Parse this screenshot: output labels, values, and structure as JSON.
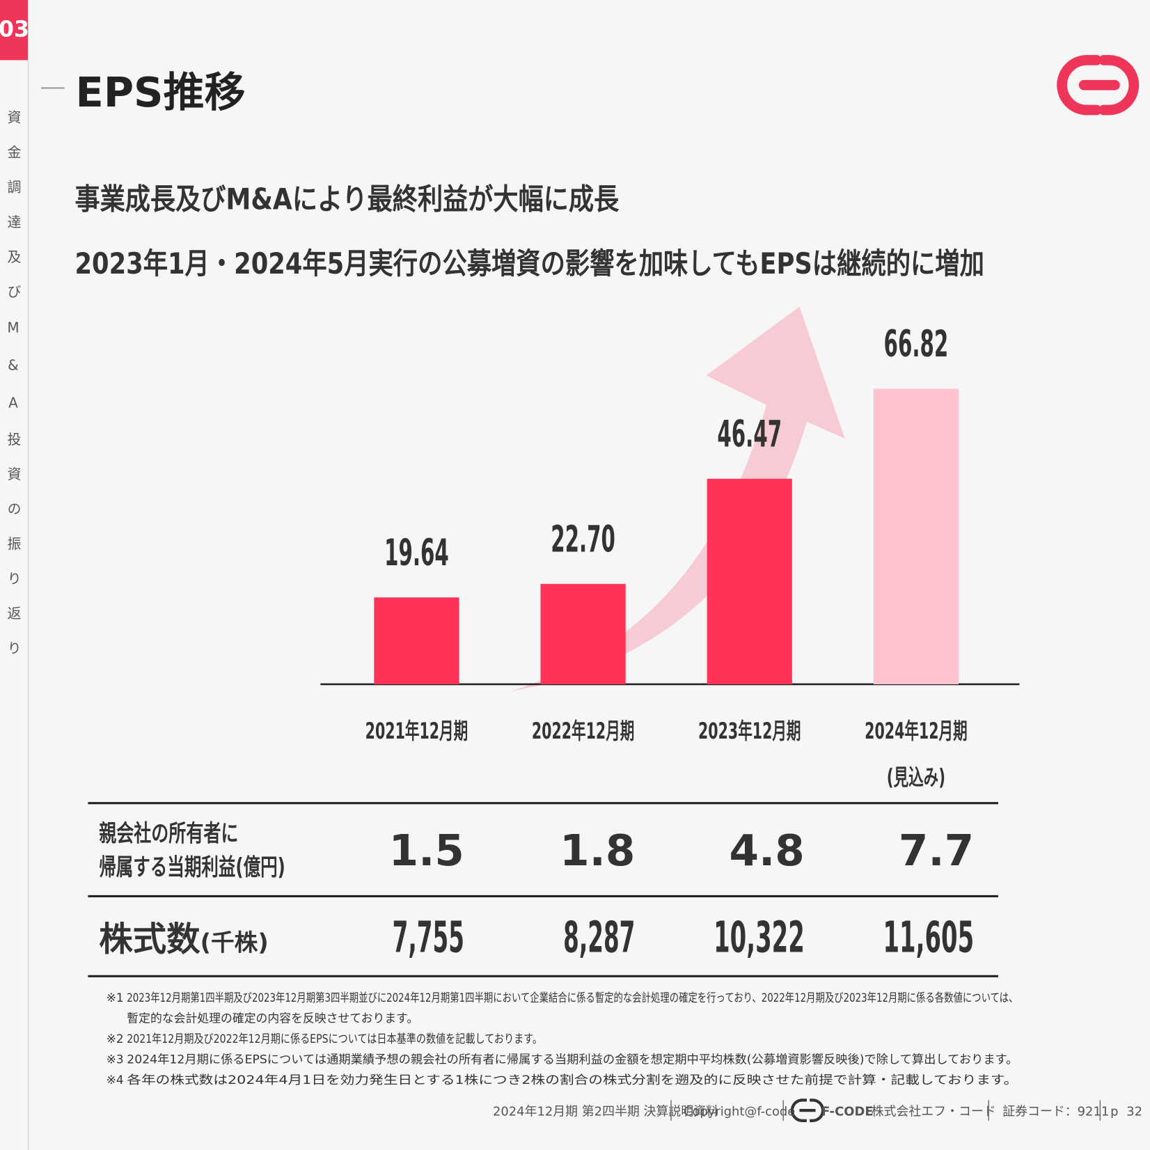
{
  "section_number": "03",
  "sidebar": "資金調達及びM&A投資の振り返り",
  "title": "EPS推移",
  "headline": [
    "事業成長及びM&Aにより最終利益が大幅に成長",
    "2023年1月・2024年5月実行の公募増資の影響を加味してもEPSは継続的に増加"
  ],
  "chart_data": {
    "type": "bar",
    "categories": [
      "2021年12月期",
      "2022年12月期",
      "2023年12月期",
      "2024年12月期"
    ],
    "forecast_label": "(見込み)",
    "values": [
      19.64,
      22.7,
      46.47,
      66.82
    ],
    "value_labels": [
      "19.64",
      "22.70",
      "46.47",
      "66.82"
    ],
    "colors": [
      "#ff3358",
      "#ff3358",
      "#ff3358",
      "#ffc3cf"
    ]
  },
  "table": {
    "rows": [
      {
        "label": [
          "親会社の所有者に",
          "帰属する当期利益(億円)"
        ],
        "cells": [
          "1.5",
          "1.8",
          "4.8",
          "7.7"
        ]
      },
      {
        "label": [
          "株式数",
          "(千株)"
        ],
        "cells": [
          "7,755",
          "8,287",
          "10,322",
          "11,605"
        ]
      }
    ]
  },
  "notes": [
    {
      "mark": "※1",
      "lines": [
        "2023年12月期第1四半期及び2023年12月期第3四半期並びに2024年12月期第1四半期において企業結合に係る暫定的な会計処理の確定を行っており、2022年12月期及び2023年12月期に係る各数値については、",
        "暫定的な会計処理の確定の内容を反映させております。"
      ]
    },
    {
      "mark": "※2",
      "lines": [
        "2021年12月期及び2022年12月期に係るEPSについては日本基準の数値を記載しております。"
      ]
    },
    {
      "mark": "※3",
      "lines": [
        "2024年12月期に係るEPSについては通期業績予想の親会社の所有者に帰属する当期利益の金額を想定期中平均株数(公募増資影響反映後)で除して算出しております。"
      ]
    },
    {
      "mark": "※4",
      "lines": [
        "各年の株式数は2024年4月1日を効力発生日とする1株につき2株の割合の株式分割を遡及的に反映させた前提で計算・記載しております。"
      ]
    }
  ],
  "footer": {
    "document": "2024年12月期 第2四半期 決算説明資料",
    "copyright": "Copyright@f-code",
    "brand": "F-CODE",
    "company": "株式会社エフ・コード",
    "code": "証券コード：9211",
    "page_prefix": "p",
    "page": "32"
  }
}
